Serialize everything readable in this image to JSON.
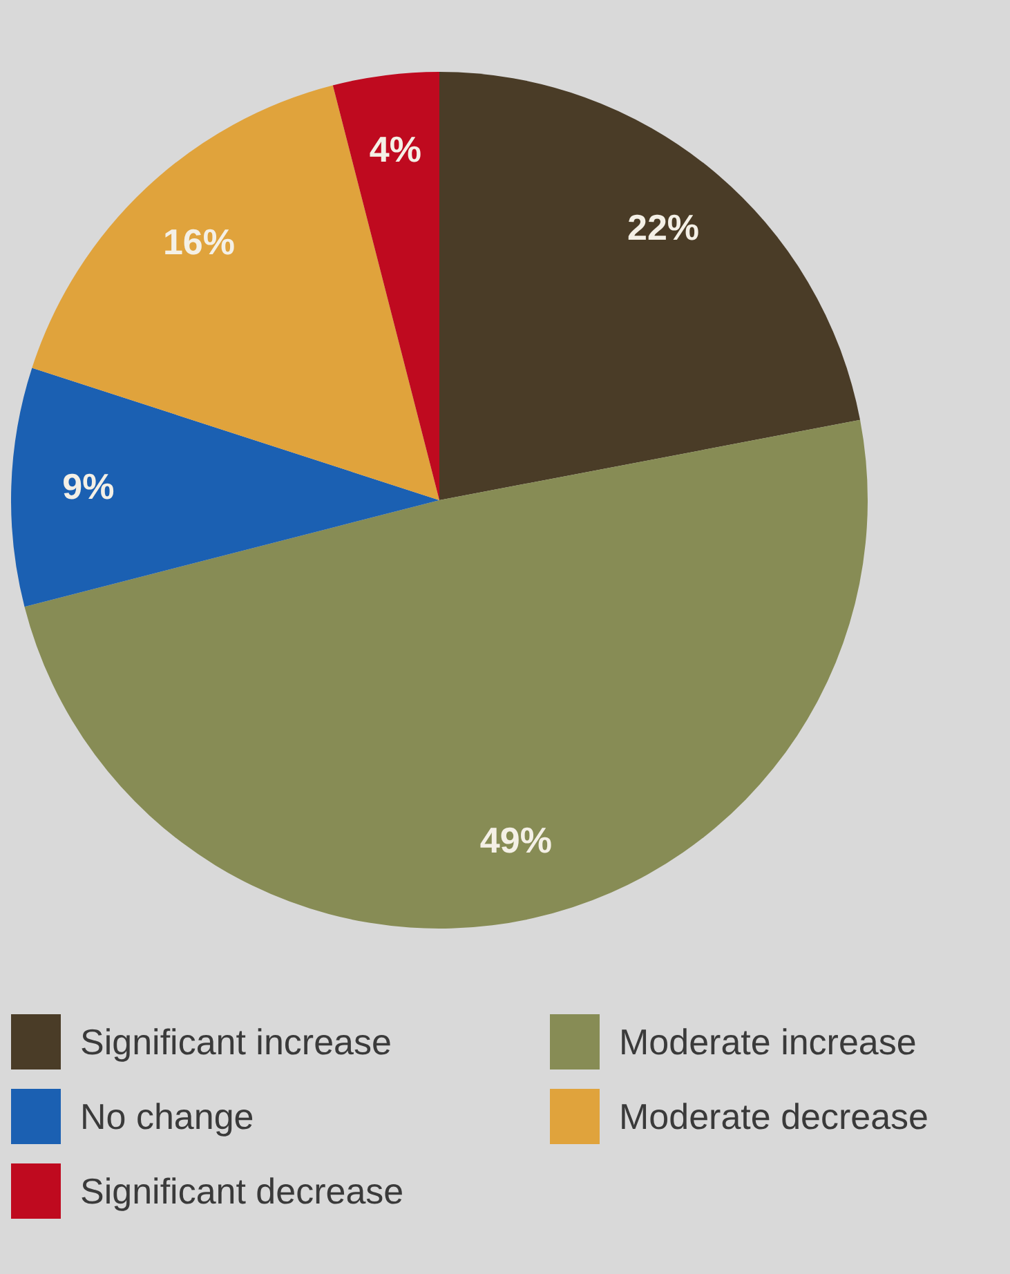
{
  "chart_data": {
    "type": "pie",
    "categories": [
      "Significant increase",
      "Moderate increase",
      "No change",
      "Moderate decrease",
      "Significant decrease"
    ],
    "values": [
      22,
      49,
      9,
      16,
      4
    ],
    "value_labels": [
      "22%",
      "49%",
      "9%",
      "16%",
      "4%"
    ],
    "colors": [
      "#4a3c27",
      "#878c55",
      "#1b60b2",
      "#e0a33c",
      "#bf0a1f"
    ],
    "legend": "bottom"
  }
}
